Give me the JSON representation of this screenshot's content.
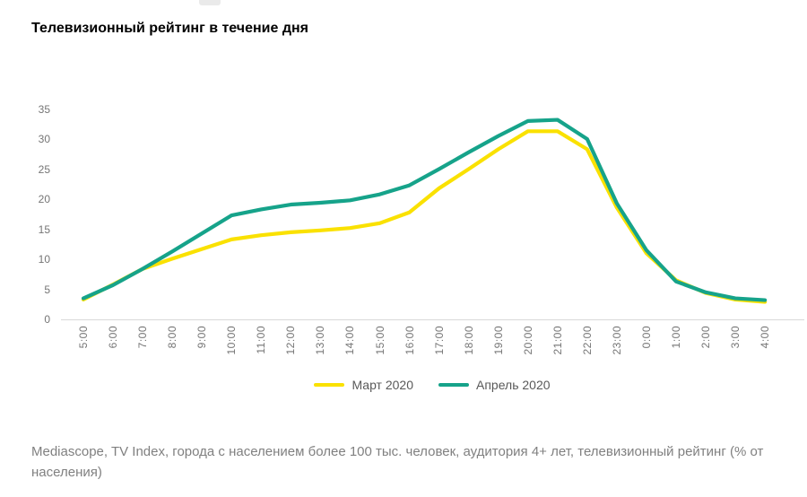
{
  "page": {
    "title": "Телевизионный рейтинг в течение дня",
    "footer": "Mediascope, TV Index, города с населением более 100 тыс. человек, аудитория 4+ лет, телевизионный рейтинг (% от населения)"
  },
  "colors": {
    "march_line": "#FAE100",
    "april_line": "#16A38A",
    "axis_line": "#D9D9D9",
    "tick_label": "#757575",
    "legend_text": "#595959",
    "footer_text": "#808080",
    "title_text": "#000000"
  },
  "chart_data": {
    "type": "line",
    "title": "Телевизионный рейтинг в течение дня",
    "xlabel": "",
    "ylabel": "",
    "x": [
      "5:00",
      "6:00",
      "7:00",
      "8:00",
      "9:00",
      "10:00",
      "11:00",
      "12:00",
      "13:00",
      "14:00",
      "15:00",
      "16:00",
      "17:00",
      "18:00",
      "19:00",
      "20:00",
      "21:00",
      "22:00",
      "23:00",
      "0:00",
      "1:00",
      "2:00",
      "3:00",
      "4:00"
    ],
    "series": [
      {
        "name": "Март 2020",
        "color": "#FAE100",
        "values": [
          3.3,
          5.8,
          8.4,
          10.1,
          11.7,
          13.3,
          14.0,
          14.5,
          14.8,
          15.2,
          16.0,
          17.8,
          21.8,
          25.0,
          28.3,
          31.3,
          31.3,
          28.3,
          18.6,
          11.0,
          6.5,
          4.4,
          3.3,
          2.9
        ]
      },
      {
        "name": "Апрель 2020",
        "color": "#16A38A",
        "values": [
          3.5,
          5.7,
          8.4,
          11.3,
          14.3,
          17.3,
          18.3,
          19.1,
          19.4,
          19.8,
          20.8,
          22.3,
          25.0,
          27.8,
          30.5,
          33.0,
          33.2,
          30.0,
          19.3,
          11.5,
          6.3,
          4.5,
          3.5,
          3.2
        ]
      }
    ],
    "ylim": [
      0,
      35
    ],
    "yticks": [
      0,
      5,
      10,
      15,
      20,
      25,
      30,
      35
    ],
    "grid": false,
    "legend_position": "bottom",
    "x_tick_rotation": 90
  }
}
